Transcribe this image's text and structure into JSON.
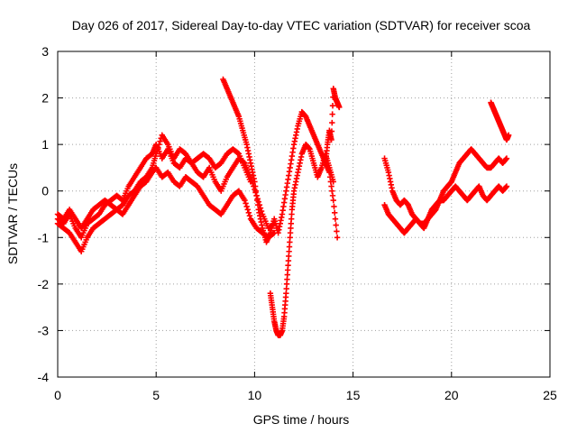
{
  "chart_data": {
    "type": "scatter",
    "title": "Day 026 of 2017, Sidereal Day-to-day VTEC variation (SDTVAR) for receiver scoa",
    "xlabel": "GPS time / hours",
    "ylabel": "SDTVAR / TECUs",
    "xlim": [
      0,
      25
    ],
    "ylim": [
      -4,
      3
    ],
    "xticks": [
      "0",
      "5",
      "10",
      "15",
      "20",
      "25"
    ],
    "yticks": [
      "3",
      "2",
      "1",
      "0",
      "-1",
      "-2",
      "-3",
      "-4"
    ],
    "xtick_values": [
      0,
      5,
      10,
      15,
      20,
      25
    ],
    "ytick_values": [
      3,
      2,
      1,
      0,
      -1,
      -2,
      -3,
      -4
    ],
    "grid": true,
    "marker": "+",
    "color": "#ff0000",
    "series": [
      {
        "x": [
          0.0,
          0.3,
          0.6,
          0.9,
          1.2,
          1.5,
          1.8,
          2.1,
          2.4,
          2.7,
          3.0,
          3.3,
          3.6,
          3.9,
          4.2,
          4.5,
          4.8,
          5.0,
          5.3,
          5.6,
          5.9,
          6.2,
          6.5,
          6.8,
          7.1,
          7.4,
          7.7,
          8.0,
          8.3,
          8.6,
          8.9,
          9.2,
          9.5,
          9.8,
          10.1,
          10.4,
          10.7,
          11.0
        ],
        "y": [
          -0.6,
          -0.7,
          -0.5,
          -0.8,
          -1.0,
          -0.7,
          -0.6,
          -0.5,
          -0.3,
          -0.2,
          -0.1,
          -0.2,
          0.1,
          0.3,
          0.5,
          0.7,
          0.8,
          1.0,
          0.7,
          0.9,
          0.6,
          0.5,
          0.7,
          0.6,
          0.4,
          0.3,
          0.5,
          0.2,
          0.0,
          0.3,
          0.5,
          0.7,
          0.6,
          0.3,
          -0.1,
          -0.5,
          -0.8,
          -0.7
        ]
      },
      {
        "x": [
          0.0,
          0.3,
          0.6,
          0.9,
          1.2,
          1.5,
          1.8,
          2.1,
          2.4,
          2.7,
          3.0,
          3.3,
          3.6,
          3.9,
          4.2,
          4.5,
          4.8,
          5.0,
          5.3,
          5.6,
          5.9,
          6.2,
          6.5,
          6.8,
          7.1,
          7.4,
          7.7,
          8.0,
          8.3,
          8.6,
          8.9,
          9.2,
          9.5,
          9.8,
          10.1,
          10.4,
          10.7,
          11.0
        ],
        "y": [
          -0.7,
          -0.8,
          -0.9,
          -1.1,
          -1.3,
          -1.0,
          -0.8,
          -0.7,
          -0.6,
          -0.5,
          -0.4,
          -0.5,
          -0.3,
          -0.1,
          0.1,
          0.2,
          0.4,
          0.5,
          0.3,
          0.4,
          0.2,
          0.1,
          0.3,
          0.2,
          0.1,
          -0.1,
          -0.3,
          -0.4,
          -0.5,
          -0.3,
          -0.1,
          0.0,
          -0.2,
          -0.6,
          -0.8,
          -0.9,
          -1.0,
          -0.9
        ]
      },
      {
        "x": [
          0.0,
          0.3,
          0.6,
          0.9,
          1.2,
          1.5,
          1.8,
          2.1,
          2.4,
          2.7,
          3.0,
          3.3,
          3.6,
          3.9,
          4.2,
          4.5,
          4.8,
          5.0,
          5.3,
          5.6,
          5.9,
          6.2,
          6.5,
          6.8,
          7.1,
          7.4,
          7.7,
          8.0,
          8.3,
          8.6,
          8.9,
          9.2,
          9.5,
          9.8
        ],
        "y": [
          -0.5,
          -0.6,
          -0.4,
          -0.6,
          -0.8,
          -0.6,
          -0.4,
          -0.3,
          -0.2,
          -0.3,
          -0.4,
          -0.3,
          -0.1,
          0.0,
          0.2,
          0.3,
          0.5,
          0.8,
          1.2,
          1.0,
          0.7,
          0.9,
          0.8,
          0.6,
          0.7,
          0.8,
          0.7,
          0.5,
          0.6,
          0.8,
          0.9,
          0.8,
          0.5,
          0.2
        ]
      },
      {
        "x": [
          8.4,
          8.6,
          8.8,
          9.0,
          9.2,
          9.4,
          9.6,
          9.8,
          10.0,
          10.2,
          10.4,
          10.6,
          10.8,
          11.0,
          11.2,
          11.4,
          11.6,
          11.8,
          12.0,
          12.2,
          12.4,
          12.6,
          12.8,
          13.0,
          13.2,
          13.4,
          13.6,
          13.8,
          14.0,
          14.2
        ],
        "y": [
          2.4,
          2.2,
          2.0,
          1.8,
          1.6,
          1.3,
          1.0,
          0.6,
          0.2,
          -0.4,
          -0.8,
          -1.1,
          -0.9,
          -0.6,
          -0.9,
          -0.5,
          0.0,
          0.5,
          1.0,
          1.4,
          1.7,
          1.6,
          1.4,
          1.2,
          1.0,
          0.8,
          0.6,
          0.4,
          -0.2,
          -1.0
        ]
      },
      {
        "x": [
          10.8,
          10.9,
          11.0,
          11.1,
          11.2,
          11.3,
          11.4,
          11.5,
          11.6,
          11.7,
          11.8,
          11.9,
          12.0,
          12.2,
          12.4,
          12.6,
          12.8,
          13.0,
          13.2,
          13.4,
          13.6,
          13.8,
          14.0
        ],
        "y": [
          -2.2,
          -2.5,
          -2.8,
          -3.0,
          -3.1,
          -3.1,
          -3.0,
          -2.7,
          -2.2,
          -1.6,
          -1.0,
          -0.4,
          0.0,
          0.4,
          0.8,
          1.0,
          0.9,
          0.6,
          0.3,
          0.5,
          0.8,
          0.5,
          0.2
        ]
      },
      {
        "x": [
          13.6,
          13.7,
          13.8,
          13.9,
          14.0,
          14.1,
          14.2,
          14.3
        ],
        "y": [
          0.6,
          1.0,
          1.3,
          1.1,
          2.2,
          2.0,
          1.9,
          1.8
        ]
      },
      {
        "x": [
          16.6,
          16.8,
          17.0,
          17.2,
          17.4,
          17.6,
          17.8,
          18.0,
          18.2,
          18.4,
          18.6,
          18.8,
          19.0,
          19.2,
          19.4,
          19.6,
          19.8,
          20.0,
          20.2,
          20.4,
          20.6,
          20.8,
          21.0,
          21.2,
          21.4,
          21.6,
          21.8,
          22.0,
          22.2,
          22.4,
          22.6,
          22.8
        ],
        "y": [
          0.7,
          0.4,
          0.0,
          -0.2,
          -0.3,
          -0.2,
          -0.3,
          -0.5,
          -0.6,
          -0.7,
          -0.7,
          -0.6,
          -0.5,
          -0.4,
          -0.2,
          0.0,
          0.1,
          0.2,
          0.4,
          0.6,
          0.7,
          0.8,
          0.9,
          0.8,
          0.7,
          0.6,
          0.5,
          0.5,
          0.6,
          0.7,
          0.6,
          0.7
        ]
      },
      {
        "x": [
          16.6,
          16.8,
          17.0,
          17.2,
          17.4,
          17.6,
          17.8,
          18.0,
          18.2,
          18.4,
          18.6,
          18.8,
          19.0,
          19.2,
          19.4,
          19.6,
          19.8,
          20.0,
          20.2,
          20.4,
          20.6,
          20.8,
          21.0,
          21.2,
          21.4,
          21.6,
          21.8,
          22.0,
          22.2,
          22.4,
          22.6,
          22.8
        ],
        "y": [
          -0.3,
          -0.5,
          -0.6,
          -0.7,
          -0.8,
          -0.9,
          -0.8,
          -0.7,
          -0.6,
          -0.7,
          -0.8,
          -0.6,
          -0.4,
          -0.3,
          -0.2,
          -0.2,
          -0.1,
          0.0,
          0.1,
          0.0,
          -0.1,
          -0.2,
          -0.1,
          0.0,
          0.1,
          -0.1,
          -0.2,
          -0.1,
          0.0,
          0.1,
          0.0,
          0.1
        ]
      },
      {
        "x": [
          22.0,
          22.1,
          22.2,
          22.3,
          22.4,
          22.5,
          22.6,
          22.7,
          22.8,
          22.9
        ],
        "y": [
          1.9,
          1.8,
          1.7,
          1.6,
          1.5,
          1.4,
          1.3,
          1.2,
          1.1,
          1.2
        ]
      }
    ]
  }
}
